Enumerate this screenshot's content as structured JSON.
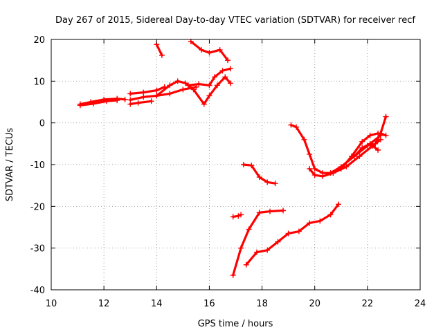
{
  "chart_data": {
    "type": "scatter",
    "title": "Day 267 of 2015, Sidereal Day-to-day VTEC variation (SDTVAR) for receiver recf",
    "xlabel": "GPS time / hours",
    "ylabel": "SDTVAR / TECUs",
    "xlim": [
      10,
      24
    ],
    "ylim": [
      -40,
      20
    ],
    "xticks": [
      "10",
      "12",
      "14",
      "16",
      "18",
      "20",
      "22",
      "24"
    ],
    "yticks": [
      "-40",
      "-30",
      "-20",
      "-10",
      "0",
      "10",
      "20"
    ],
    "grid": true,
    "marker": "plus",
    "color": "#ff0000",
    "series": [
      {
        "x": [
          11.1,
          11.5,
          12.0,
          12.5,
          12.8
        ],
        "y": [
          4.5,
          5.0,
          5.6,
          5.8,
          5.6
        ]
      },
      {
        "x": [
          11.1,
          11.6,
          12.1,
          12.5
        ],
        "y": [
          4.2,
          4.6,
          5.2,
          5.4
        ]
      },
      {
        "x": [
          13.0,
          13.5,
          14.0,
          14.5,
          15.0,
          15.5
        ],
        "y": [
          5.5,
          6.2,
          6.5,
          7.0,
          8.0,
          8.6
        ]
      },
      {
        "x": [
          13.0,
          13.5,
          14.0,
          14.3
        ],
        "y": [
          7.0,
          7.3,
          7.8,
          8.6
        ]
      },
      {
        "x": [
          13.0,
          13.3,
          13.8
        ],
        "y": [
          4.5,
          4.8,
          5.2
        ]
      },
      {
        "x": [
          14.0,
          14.5,
          14.8,
          15.1,
          15.4,
          15.8,
          16.0,
          16.3,
          16.6,
          16.8
        ],
        "y": [
          6.5,
          9.0,
          10.0,
          9.5,
          8.0,
          4.5,
          6.5,
          9.0,
          11.0,
          9.5
        ]
      },
      {
        "x": [
          15.2,
          15.6,
          16.0,
          16.2,
          16.5,
          16.8
        ],
        "y": [
          9.0,
          9.3,
          9.0,
          11.0,
          12.5,
          13.0
        ]
      },
      {
        "x": [
          15.3,
          15.7,
          16.0,
          16.4,
          16.7
        ],
        "y": [
          19.5,
          17.5,
          16.8,
          17.5,
          15.0
        ]
      },
      {
        "x": [
          14.0,
          14.2
        ],
        "y": [
          18.8,
          16.2
        ]
      },
      {
        "x": [
          17.3,
          17.6,
          17.9,
          18.2,
          18.5
        ],
        "y": [
          -10.0,
          -10.2,
          -13.0,
          -14.2,
          -14.5
        ]
      },
      {
        "x": [
          16.9,
          17.1,
          17.2
        ],
        "y": [
          -22.5,
          -22.3,
          -22.0
        ]
      },
      {
        "x": [
          16.9,
          17.2,
          17.5,
          17.9,
          18.3,
          18.8
        ],
        "y": [
          -36.5,
          -30.0,
          -25.5,
          -21.5,
          -21.2,
          -21.0
        ]
      },
      {
        "x": [
          17.4,
          17.8,
          18.2,
          18.6,
          19.0,
          19.4,
          19.8,
          20.2,
          20.6,
          20.9
        ],
        "y": [
          -34.0,
          -31.0,
          -30.5,
          -28.5,
          -26.5,
          -26.0,
          -24.0,
          -23.5,
          -22.0,
          -19.5
        ]
      },
      {
        "x": [
          19.1,
          19.3,
          19.6,
          19.8,
          20.0,
          20.3,
          20.6,
          21.0,
          21.5,
          22.0,
          22.5
        ],
        "y": [
          -0.5,
          -1.0,
          -4.0,
          -7.5,
          -11.0,
          -12.0,
          -12.0,
          -10.5,
          -8.0,
          -5.5,
          -3.0
        ]
      },
      {
        "x": [
          19.8,
          20.0,
          20.3,
          20.7,
          21.2,
          21.7,
          22.2,
          22.5
        ],
        "y": [
          -11.0,
          -12.5,
          -12.8,
          -12.0,
          -10.5,
          -8.0,
          -5.5,
          -4.0
        ]
      },
      {
        "x": [
          21.0,
          21.4,
          21.8,
          22.1,
          22.4,
          22.7
        ],
        "y": [
          -11.0,
          -8.0,
          -4.5,
          -3.0,
          -2.5,
          -3.0
        ]
      },
      {
        "x": [
          21.5,
          21.8,
          22.1,
          22.4
        ],
        "y": [
          -8.0,
          -6.0,
          -5.0,
          -6.5
        ]
      },
      {
        "x": [
          22.3,
          22.5,
          22.7
        ],
        "y": [
          -5.0,
          -2.5,
          1.5
        ]
      }
    ]
  }
}
